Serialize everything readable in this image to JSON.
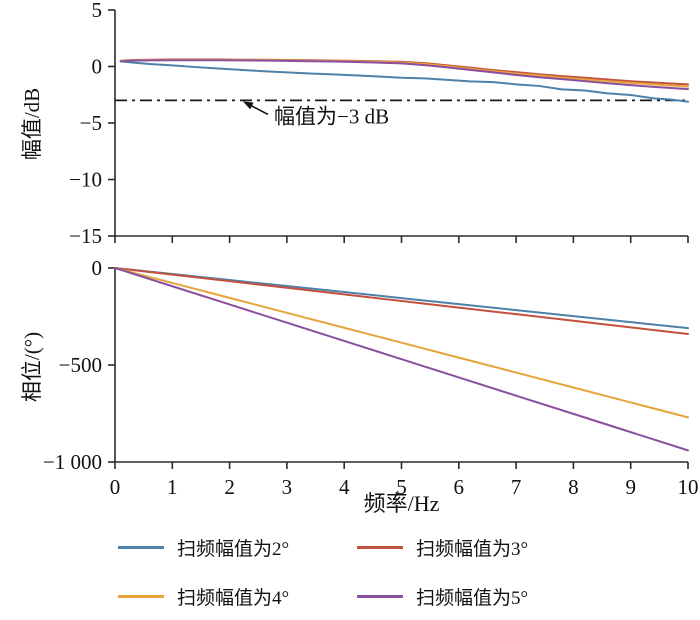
{
  "figure": {
    "xlabel": "频率/Hz",
    "legend": [
      {
        "label": "扫频幅值为2°",
        "color": "#4f81a8"
      },
      {
        "label": "扫频幅值为3°",
        "color": "#c4503e"
      },
      {
        "label": "扫频幅值为4°",
        "color": "#e6a43b"
      },
      {
        "label": "扫频幅值为5°",
        "color": "#8a4f9e"
      }
    ],
    "colors": {
      "axis": "#2b2b2b",
      "reference_line": "#1a1a1a",
      "text": "#111111"
    }
  },
  "chart_data": [
    {
      "type": "line",
      "title": "",
      "xlabel": "频率/Hz",
      "ylabel": "幅值/dB",
      "xlim": [
        0,
        10
      ],
      "ylim": [
        -15,
        5
      ],
      "yticks": [
        5,
        0,
        -5,
        -10,
        -15
      ],
      "ytick_labels": [
        "5",
        "0",
        "−5",
        "−10",
        "−15"
      ],
      "xticks": [
        0,
        1,
        2,
        3,
        4,
        5,
        6,
        7,
        8,
        9,
        10
      ],
      "show_xtick_labels": false,
      "grid": false,
      "reference_line": {
        "y": -3,
        "style": "dash-dot",
        "label": "幅值为−3 dB"
      },
      "annotation": {
        "text": "幅值为−3 dB",
        "points_to_y": -3
      },
      "series": [
        {
          "name": "扫频幅值为2°",
          "color": "#4f81a8",
          "x": [
            0.1,
            0.3,
            0.6,
            1.0,
            1.4,
            1.8,
            2.2,
            2.6,
            3.0,
            3.4,
            3.8,
            4.2,
            4.6,
            5.0,
            5.4,
            5.8,
            6.2,
            6.6,
            7.0,
            7.4,
            7.8,
            8.2,
            8.6,
            9.0,
            9.4,
            9.7,
            10.0
          ],
          "y": [
            0.45,
            0.35,
            0.22,
            0.1,
            -0.05,
            -0.18,
            -0.3,
            -0.42,
            -0.52,
            -0.62,
            -0.7,
            -0.78,
            -0.88,
            -1.0,
            -1.05,
            -1.18,
            -1.32,
            -1.38,
            -1.58,
            -1.72,
            -2.02,
            -2.12,
            -2.38,
            -2.52,
            -2.82,
            -2.92,
            -3.12
          ]
        },
        {
          "name": "扫频幅值为3°",
          "color": "#c4503e",
          "x": [
            0.1,
            0.3,
            0.6,
            1.0,
            1.4,
            1.8,
            2.2,
            2.6,
            3.0,
            3.4,
            3.8,
            4.2,
            4.6,
            5.0,
            5.4,
            5.8,
            6.2,
            6.6,
            7.0,
            7.4,
            7.8,
            8.2,
            8.6,
            9.0,
            9.4,
            9.7,
            10.0
          ],
          "y": [
            0.5,
            0.58,
            0.6,
            0.62,
            0.62,
            0.62,
            0.6,
            0.6,
            0.58,
            0.55,
            0.52,
            0.5,
            0.45,
            0.42,
            0.3,
            0.1,
            -0.1,
            -0.32,
            -0.5,
            -0.68,
            -0.85,
            -1.0,
            -1.15,
            -1.3,
            -1.42,
            -1.5,
            -1.58
          ]
        },
        {
          "name": "扫频幅值为4°",
          "color": "#e6a43b",
          "x": [
            0.1,
            0.3,
            0.6,
            1.0,
            1.4,
            1.8,
            2.2,
            2.6,
            3.0,
            3.4,
            3.8,
            4.2,
            4.6,
            5.0,
            5.4,
            5.8,
            6.2,
            6.6,
            7.0,
            7.4,
            7.8,
            8.2,
            8.6,
            9.0,
            9.4,
            9.7,
            10.0
          ],
          "y": [
            0.48,
            0.55,
            0.57,
            0.58,
            0.58,
            0.58,
            0.57,
            0.56,
            0.54,
            0.5,
            0.48,
            0.45,
            0.4,
            0.35,
            0.22,
            0.02,
            -0.2,
            -0.42,
            -0.62,
            -0.8,
            -0.98,
            -1.15,
            -1.3,
            -1.45,
            -1.58,
            -1.68,
            -1.78
          ]
        },
        {
          "name": "扫频幅值为5°",
          "color": "#8a4f9e",
          "x": [
            0.1,
            0.3,
            0.6,
            1.0,
            1.4,
            1.8,
            2.2,
            2.6,
            3.0,
            3.4,
            3.8,
            4.2,
            4.6,
            5.0,
            5.4,
            5.8,
            6.2,
            6.6,
            7.0,
            7.4,
            7.8,
            8.2,
            8.6,
            9.0,
            9.4,
            9.7,
            10.0
          ],
          "y": [
            0.46,
            0.52,
            0.54,
            0.55,
            0.55,
            0.55,
            0.54,
            0.52,
            0.5,
            0.47,
            0.44,
            0.4,
            0.34,
            0.28,
            0.12,
            -0.08,
            -0.3,
            -0.52,
            -0.75,
            -0.95,
            -1.12,
            -1.3,
            -1.48,
            -1.65,
            -1.8,
            -1.9,
            -2.0
          ]
        }
      ]
    },
    {
      "type": "line",
      "title": "",
      "xlabel": "频率/Hz",
      "ylabel": "相位/(°)",
      "xlim": [
        0,
        10
      ],
      "ylim": [
        -1000,
        0
      ],
      "yticks": [
        0,
        -500,
        -1000
      ],
      "ytick_labels": [
        "0",
        "−500",
        "−1 000"
      ],
      "xticks": [
        0,
        1,
        2,
        3,
        4,
        5,
        6,
        7,
        8,
        9,
        10
      ],
      "xtick_labels": [
        "0",
        "1",
        "2",
        "3",
        "4",
        "5",
        "6",
        "7",
        "8",
        "9",
        "10"
      ],
      "show_xtick_labels": true,
      "grid": false,
      "series": [
        {
          "name": "扫频幅值为2°",
          "color": "#4f81a8",
          "x": [
            0,
            1,
            2,
            3,
            4,
            5,
            6,
            7,
            8,
            9,
            10
          ],
          "y": [
            0,
            -31,
            -62,
            -93,
            -124,
            -155,
            -186,
            -217,
            -248,
            -279,
            -310
          ]
        },
        {
          "name": "扫频幅值为3°",
          "color": "#c4503e",
          "x": [
            0,
            1,
            2,
            3,
            4,
            5,
            6,
            7,
            8,
            9,
            10
          ],
          "y": [
            0,
            -34,
            -68,
            -102,
            -136,
            -170,
            -204,
            -238,
            -272,
            -306,
            -340
          ]
        },
        {
          "name": "扫频幅值为4°",
          "color": "#e6a43b",
          "x": [
            0,
            1,
            2,
            3,
            4,
            5,
            6,
            7,
            8,
            9,
            10
          ],
          "y": [
            0,
            -77,
            -154,
            -231,
            -308,
            -385,
            -462,
            -539,
            -616,
            -693,
            -770
          ]
        },
        {
          "name": "扫频幅值为5°",
          "color": "#8a4f9e",
          "x": [
            0,
            1,
            2,
            3,
            4,
            5,
            6,
            7,
            8,
            9,
            10
          ],
          "y": [
            0,
            -94,
            -188,
            -282,
            -376,
            -470,
            -564,
            -658,
            -752,
            -846,
            -940
          ]
        }
      ]
    }
  ]
}
